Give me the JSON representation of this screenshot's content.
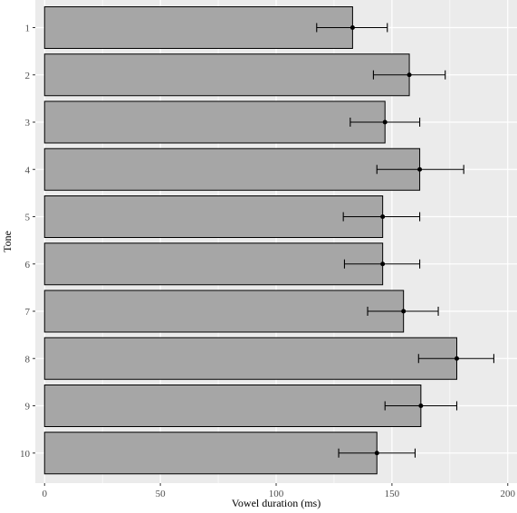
{
  "chart_data": {
    "type": "bar",
    "orientation": "horizontal",
    "xlabel": "Vowel duration (ms)",
    "ylabel": "Tone",
    "xlim": [
      -4,
      204
    ],
    "xticks": [
      0,
      50,
      100,
      150,
      200
    ],
    "categories": [
      "1",
      "2",
      "3",
      "4",
      "5",
      "6",
      "7",
      "8",
      "9",
      "10"
    ],
    "values": [
      133,
      157.5,
      147,
      162,
      146,
      146,
      155,
      178,
      162.5,
      143.5
    ],
    "error_low": [
      117.5,
      142,
      132,
      143.5,
      129,
      129.5,
      139.5,
      161.5,
      147,
      127
    ],
    "error_high": [
      148,
      173,
      162,
      181,
      162,
      162,
      170,
      194,
      178,
      160
    ],
    "grid": true,
    "legend": "none",
    "colors": {
      "panel": "#ebebeb",
      "grid": "#ffffff",
      "bar_fill": "#a6a6a6",
      "bar_stroke": "#000000",
      "error": "#000000"
    }
  }
}
